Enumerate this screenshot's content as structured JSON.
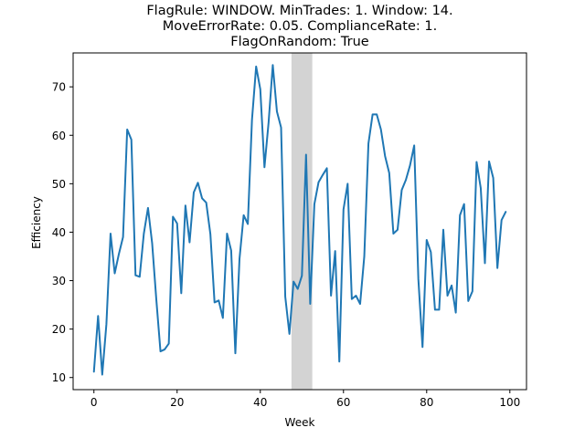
{
  "chart_data": {
    "type": "line",
    "title_lines": [
      "FlagRule: WINDOW. MinTrades: 1. Window: 14.",
      "MoveErrorRate: 0.05. ComplianceRate: 1.",
      "FlagOnRandom: True"
    ],
    "xlabel": "Week",
    "ylabel": "Efficiency",
    "xlim": [
      -5,
      104
    ],
    "ylim": [
      7.5,
      77
    ],
    "xticks": [
      0,
      20,
      40,
      60,
      80,
      100
    ],
    "yticks": [
      10,
      20,
      30,
      40,
      50,
      60,
      70
    ],
    "grid": false,
    "line_color": "#1f77b4",
    "shaded_region": {
      "x_start": 47.5,
      "x_end": 52.5,
      "color": "#d3d3d3"
    },
    "x": [
      0,
      1,
      2,
      3,
      4,
      5,
      6,
      7,
      8,
      9,
      10,
      11,
      12,
      13,
      14,
      15,
      16,
      17,
      18,
      19,
      20,
      21,
      22,
      23,
      24,
      25,
      26,
      27,
      28,
      29,
      30,
      31,
      32,
      33,
      34,
      35,
      36,
      37,
      38,
      39,
      40,
      41,
      42,
      43,
      44,
      45,
      46,
      47,
      48,
      49,
      50,
      51,
      52,
      53,
      54,
      55,
      56,
      57,
      58,
      59,
      60,
      61,
      62,
      63,
      64,
      65,
      66,
      67,
      68,
      69,
      70,
      71,
      72,
      73,
      74,
      75,
      76,
      77,
      78,
      79,
      80,
      81,
      82,
      83,
      84,
      85,
      86,
      87,
      88,
      89,
      90,
      91,
      92,
      93,
      94,
      95,
      96,
      97,
      98,
      99
    ],
    "series": [
      {
        "values": [
          11.2,
          22.7,
          10.6,
          21,
          39.7,
          31.5,
          35.5,
          39,
          61.2,
          59.1,
          31.1,
          30.8,
          39.7,
          45,
          37.7,
          26.1,
          15.4,
          15.8,
          17,
          43.2,
          41.8,
          27.4,
          45.5,
          37.9,
          48.2,
          50.2,
          47,
          46.1,
          39.6,
          25.5,
          25.9,
          22.3,
          39.7,
          36.2,
          15,
          34.5,
          43.5,
          41.7,
          63.2,
          74.2,
          69.5,
          53.4,
          62.7,
          74.5,
          64.9,
          61.6,
          26.7,
          19,
          29.8,
          28.3,
          31,
          56,
          25.2,
          45.8,
          50.3,
          51.8,
          53.2,
          26.9,
          36.1,
          13.3,
          44.7,
          50,
          26.2,
          26.9,
          25.2,
          35,
          58.3,
          64.3,
          64.3,
          61.2,
          55.7,
          52.2,
          39.7,
          40.5,
          48.7,
          50.8,
          53.8,
          57.9,
          30.3,
          16.3,
          38.4,
          35.9,
          24,
          24,
          40.5,
          26.9,
          29,
          23.4,
          43.5,
          45.8,
          25.8,
          27.8,
          54.5,
          49.1,
          33.6,
          54.6,
          51.2,
          32.6,
          42.5,
          44.2
        ]
      }
    ]
  }
}
